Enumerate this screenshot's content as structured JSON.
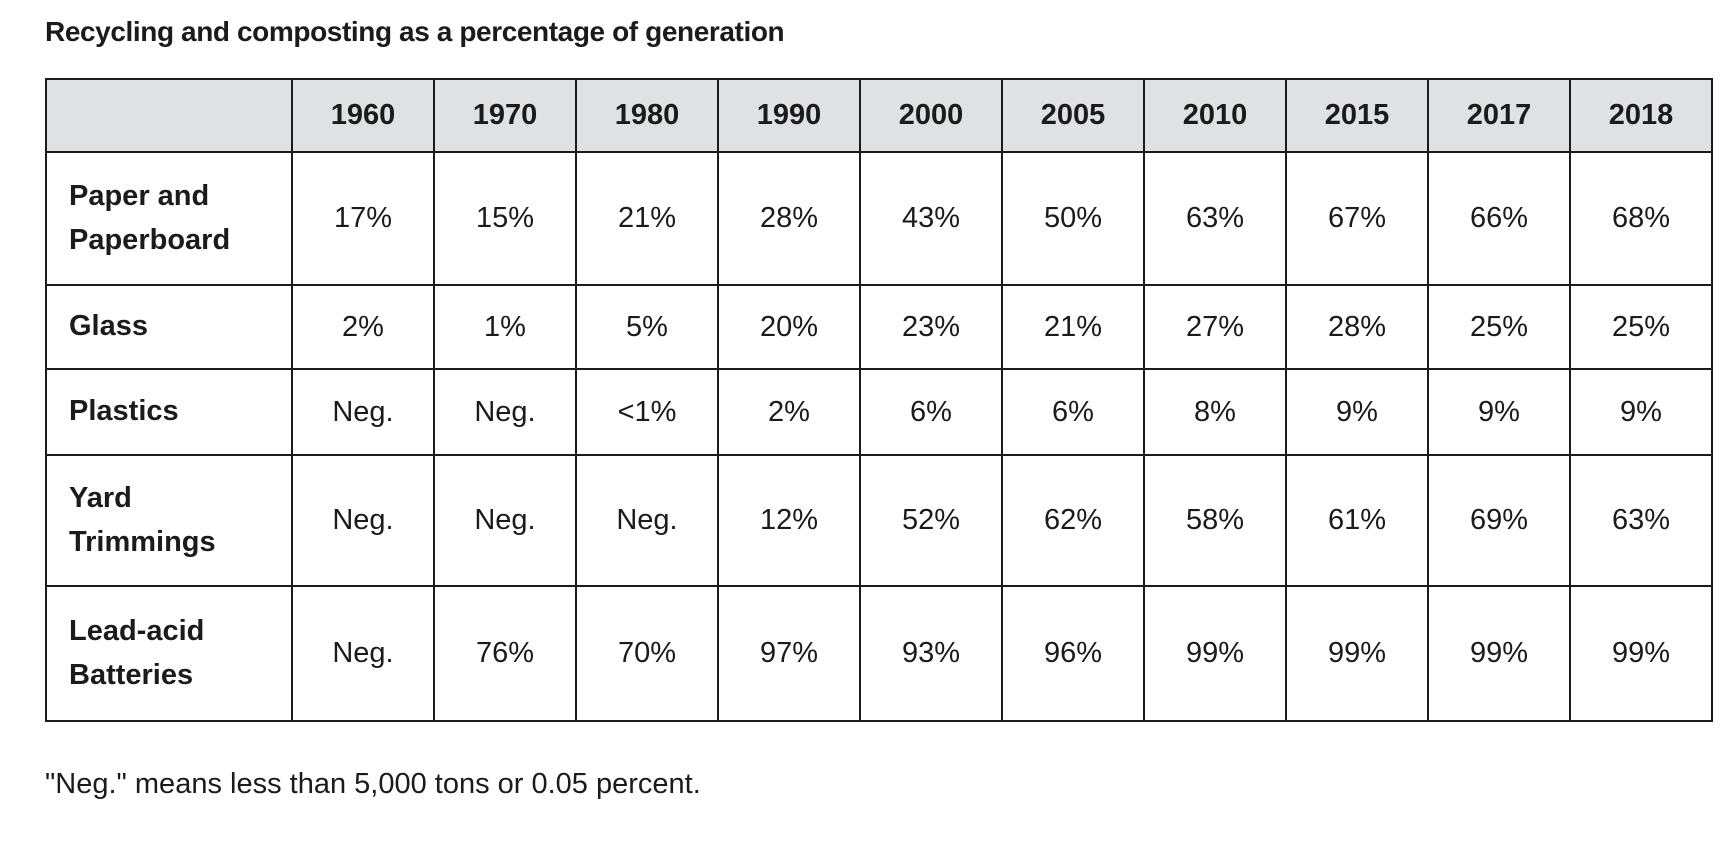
{
  "chart_data": {
    "type": "table",
    "title": "Recycling and composting as a percentage of generation",
    "corner_label": "",
    "columns": [
      "1960",
      "1970",
      "1980",
      "1990",
      "2000",
      "2005",
      "2010",
      "2015",
      "2017",
      "2018"
    ],
    "rows": [
      {
        "label": "Paper and Paperboard",
        "values": [
          "17%",
          "15%",
          "21%",
          "28%",
          "43%",
          "50%",
          "63%",
          "67%",
          "66%",
          "68%"
        ]
      },
      {
        "label": "Glass",
        "values": [
          "2%",
          "1%",
          "5%",
          "20%",
          "23%",
          "21%",
          "27%",
          "28%",
          "25%",
          "25%"
        ]
      },
      {
        "label": "Plastics",
        "values": [
          "Neg.",
          "Neg.",
          "<1%",
          "2%",
          "6%",
          "6%",
          "8%",
          "9%",
          "9%",
          "9%"
        ]
      },
      {
        "label": "Yard Trimmings",
        "values": [
          "Neg.",
          "Neg.",
          "Neg.",
          "12%",
          "52%",
          "62%",
          "58%",
          "61%",
          "69%",
          "63%"
        ]
      },
      {
        "label": "Lead-acid Batteries",
        "values": [
          "Neg.",
          "76%",
          "70%",
          "97%",
          "93%",
          "96%",
          "99%",
          "99%",
          "99%",
          "99%"
        ]
      }
    ],
    "footnote": "\"Neg.\" means less than 5,000 tons or 0.05 percent.",
    "layout_hints": {
      "grid": "on",
      "header_row": "top",
      "label_column": "left"
    }
  },
  "colors": {
    "header_bg": "#dfe1e2",
    "border": "#1b1b1b",
    "text": "#1b1b1b",
    "page_bg": "#ffffff"
  }
}
